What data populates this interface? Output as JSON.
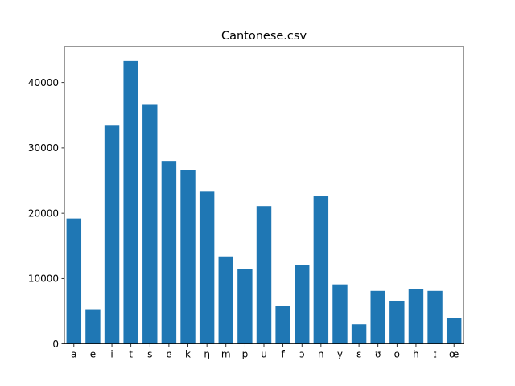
{
  "chart_data": {
    "type": "bar",
    "title": "Cantonese.csv",
    "xlabel": "",
    "ylabel": "",
    "categories": [
      "a",
      "e",
      "i",
      "t",
      "s",
      "ɐ",
      "k",
      "ŋ",
      "m",
      "p",
      "u",
      "f",
      "ɔ",
      "n",
      "y",
      "ɛ",
      "ʊ",
      "o",
      "h",
      "ɪ",
      "œ"
    ],
    "values": [
      19200,
      5300,
      33400,
      43300,
      36700,
      28000,
      26600,
      23300,
      13400,
      11500,
      21100,
      5800,
      12100,
      22600,
      9100,
      3000,
      8100,
      6600,
      8400,
      8100,
      4000
    ],
    "ylim": [
      0,
      45500
    ],
    "yticks": [
      0,
      10000,
      20000,
      30000,
      40000
    ],
    "ytick_labels": [
      "0",
      "10000",
      "20000",
      "30000",
      "40000"
    ],
    "bar_color": "#1f77b4",
    "grid": false
  }
}
